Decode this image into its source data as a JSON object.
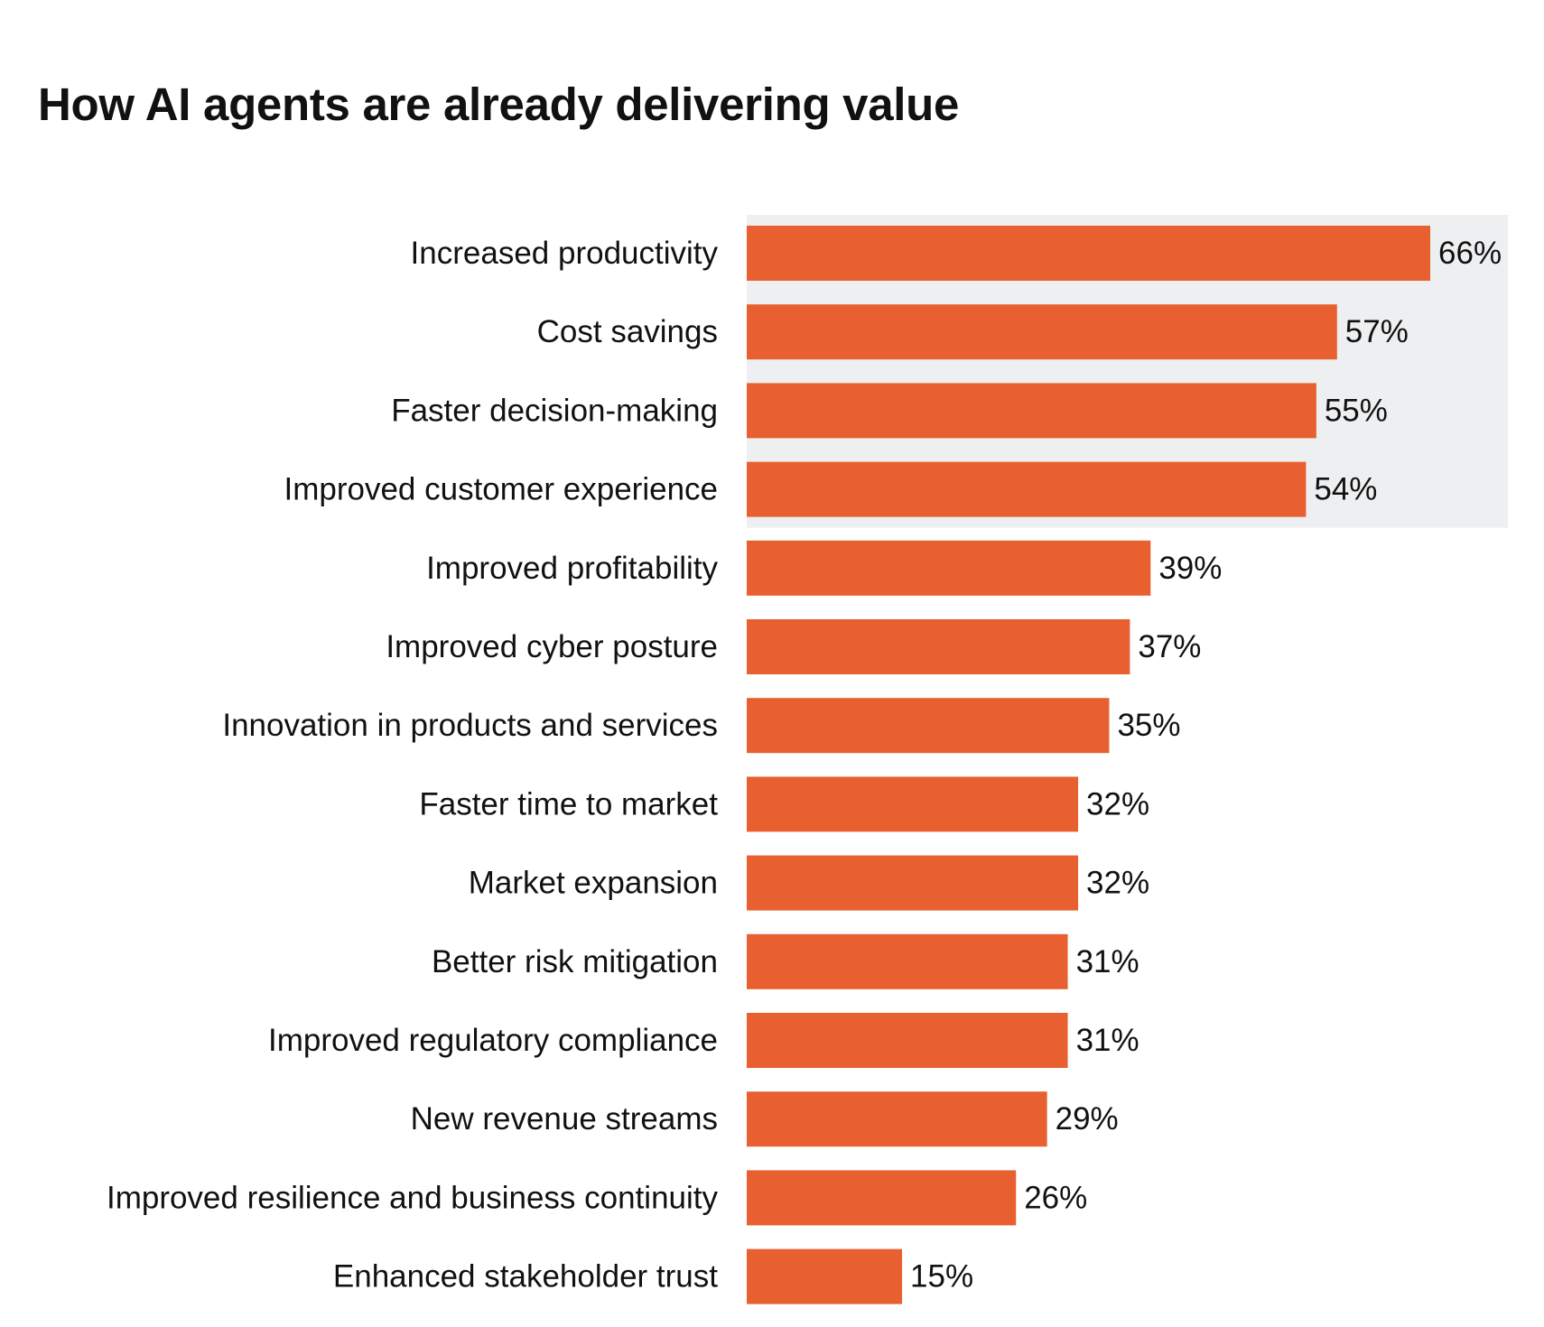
{
  "title": "How AI agents are already delivering value",
  "colors": {
    "bar": "#e8602f",
    "highlight_band": "#eeeff1",
    "text": "#111111",
    "background": "#ffffff"
  },
  "chart_data": {
    "type": "bar",
    "orientation": "horizontal",
    "title": "How AI agents are already delivering value",
    "xlabel": "",
    "ylabel": "",
    "unit": "%",
    "xlim": [
      0,
      66
    ],
    "grid": false,
    "legend": "none",
    "highlighted_categories": [
      "Increased productivity",
      "Cost savings",
      "Faster decision-making",
      "Improved customer experience"
    ],
    "categories": [
      "Increased productivity",
      "Cost savings",
      "Faster decision-making",
      "Improved customer experience",
      "Improved profitability",
      "Improved cyber posture",
      "Innovation in products and services",
      "Faster time to market",
      "Market expansion",
      "Better risk mitigation",
      "Improved regulatory compliance",
      "New revenue streams",
      "Improved resilience and business continuity",
      "Enhanced stakeholder trust"
    ],
    "values": [
      66,
      57,
      55,
      54,
      39,
      37,
      35,
      32,
      32,
      31,
      31,
      29,
      26,
      15
    ],
    "data_labels": [
      "66%",
      "57%",
      "55%",
      "54%",
      "39%",
      "37%",
      "35%",
      "32%",
      "32%",
      "31%",
      "31%",
      "29%",
      "26%",
      "15%"
    ]
  }
}
